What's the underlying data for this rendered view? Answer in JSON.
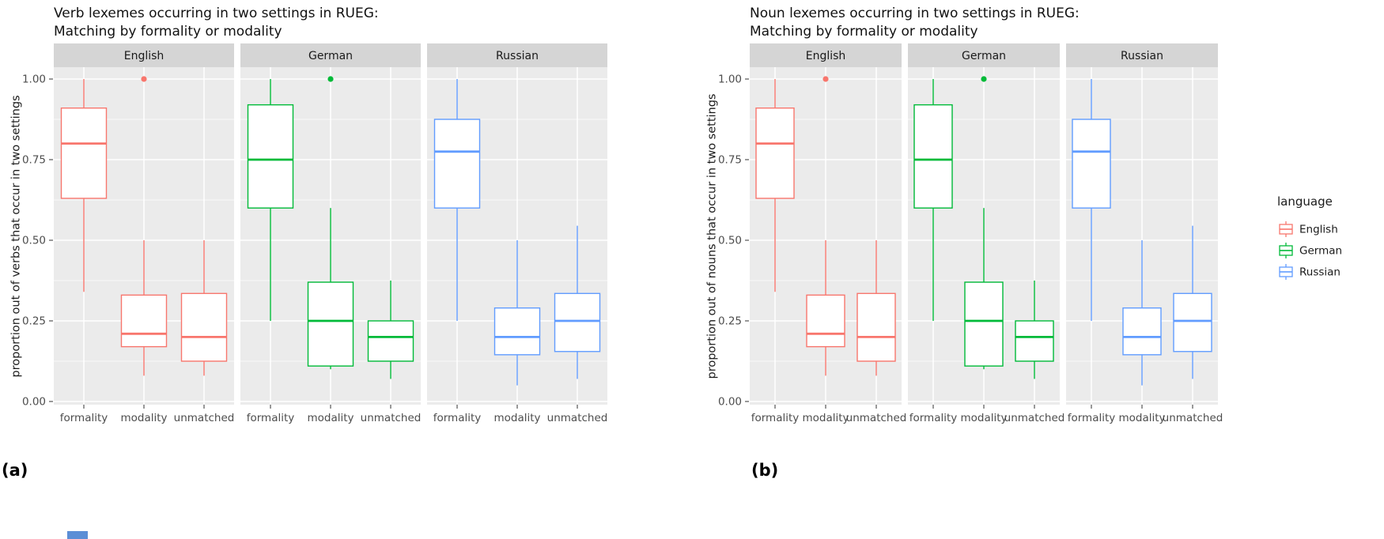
{
  "figures": [
    {
      "caption": "(a)",
      "title_line1": "Verb lexemes occurring in two settings in RUEG:",
      "title_line2": "Matching by formality or modality",
      "ylabel": "proportion out of verbs that occur in two settings"
    },
    {
      "caption": "(b)",
      "title_line1": "Noun lexemes occurring in two settings in RUEG:",
      "title_line2": "Matching by formality or modality",
      "ylabel": "proportion out of nouns that occur in two settings"
    }
  ],
  "colors": {
    "english": "#F8766D",
    "german": "#00BA38",
    "russian": "#619CFF",
    "panel_bg": "#EBEBEB",
    "strip_bg": "#D5D5D5",
    "grid": "#FFFFFF",
    "tick_text": "#4D4D4D"
  },
  "chart_data": [
    {
      "type": "boxplot",
      "title": "Verb lexemes occurring in two settings in RUEG: Matching by formality or modality",
      "ylabel": "proportion out of verbs that occur in two settings",
      "ylim": [
        0.0,
        1.05
      ],
      "yticks": [
        0.0,
        0.25,
        0.5,
        0.75,
        1.0
      ],
      "ytick_labels": [
        "0.00",
        "0.25",
        "0.50",
        "0.75",
        "1.00"
      ],
      "minor_gridlines": [
        0.125,
        0.375,
        0.625,
        0.875
      ],
      "categories": [
        "formality",
        "modality",
        "unmatched"
      ],
      "grid": true,
      "facets": [
        {
          "label": "English",
          "color": "#F8766D",
          "boxes": [
            {
              "category": "formality",
              "whisker_low": 0.34,
              "q1": 0.63,
              "median": 0.8,
              "q3": 0.91,
              "whisker_high": 1.0,
              "outliers": []
            },
            {
              "category": "modality",
              "whisker_low": 0.08,
              "q1": 0.17,
              "median": 0.21,
              "q3": 0.33,
              "whisker_high": 0.5,
              "outliers": [
                1.0
              ]
            },
            {
              "category": "unmatched",
              "whisker_low": 0.08,
              "q1": 0.125,
              "median": 0.2,
              "q3": 0.335,
              "whisker_high": 0.5,
              "outliers": []
            }
          ]
        },
        {
          "label": "German",
          "color": "#00BA38",
          "boxes": [
            {
              "category": "formality",
              "whisker_low": 0.25,
              "q1": 0.6,
              "median": 0.75,
              "q3": 0.92,
              "whisker_high": 1.0,
              "outliers": []
            },
            {
              "category": "modality",
              "whisker_low": 0.1,
              "q1": 0.11,
              "median": 0.25,
              "q3": 0.37,
              "whisker_high": 0.6,
              "outliers": [
                1.0
              ]
            },
            {
              "category": "unmatched",
              "whisker_low": 0.07,
              "q1": 0.125,
              "median": 0.2,
              "q3": 0.25,
              "whisker_high": 0.375,
              "outliers": []
            }
          ]
        },
        {
          "label": "Russian",
          "color": "#619CFF",
          "boxes": [
            {
              "category": "formality",
              "whisker_low": 0.25,
              "q1": 0.6,
              "median": 0.775,
              "q3": 0.875,
              "whisker_high": 1.0,
              "outliers": []
            },
            {
              "category": "modality",
              "whisker_low": 0.05,
              "q1": 0.145,
              "median": 0.2,
              "q3": 0.29,
              "whisker_high": 0.5,
              "outliers": []
            },
            {
              "category": "unmatched",
              "whisker_low": 0.07,
              "q1": 0.155,
              "median": 0.25,
              "q3": 0.335,
              "whisker_high": 0.545,
              "outliers": []
            }
          ]
        }
      ],
      "legend": null
    },
    {
      "type": "boxplot",
      "title": "Noun lexemes occurring in two settings in RUEG: Matching by formality or modality",
      "ylabel": "proportion out of nouns that occur in two settings",
      "ylim": [
        0.0,
        1.05
      ],
      "yticks": [
        0.0,
        0.25,
        0.5,
        0.75,
        1.0
      ],
      "ytick_labels": [
        "0.00",
        "0.25",
        "0.50",
        "0.75",
        "1.00"
      ],
      "minor_gridlines": [
        0.125,
        0.375,
        0.625,
        0.875
      ],
      "categories": [
        "formality",
        "modality",
        "unmatched"
      ],
      "grid": true,
      "facets": [
        {
          "label": "English",
          "color": "#F8766D",
          "boxes": [
            {
              "category": "formality",
              "whisker_low": 0.34,
              "q1": 0.63,
              "median": 0.8,
              "q3": 0.91,
              "whisker_high": 1.0,
              "outliers": []
            },
            {
              "category": "modality",
              "whisker_low": 0.08,
              "q1": 0.17,
              "median": 0.21,
              "q3": 0.33,
              "whisker_high": 0.5,
              "outliers": [
                1.0
              ]
            },
            {
              "category": "unmatched",
              "whisker_low": 0.08,
              "q1": 0.125,
              "median": 0.2,
              "q3": 0.335,
              "whisker_high": 0.5,
              "outliers": []
            }
          ]
        },
        {
          "label": "German",
          "color": "#00BA38",
          "boxes": [
            {
              "category": "formality",
              "whisker_low": 0.25,
              "q1": 0.6,
              "median": 0.75,
              "q3": 0.92,
              "whisker_high": 1.0,
              "outliers": []
            },
            {
              "category": "modality",
              "whisker_low": 0.1,
              "q1": 0.11,
              "median": 0.25,
              "q3": 0.37,
              "whisker_high": 0.6,
              "outliers": [
                1.0
              ]
            },
            {
              "category": "unmatched",
              "whisker_low": 0.07,
              "q1": 0.125,
              "median": 0.2,
              "q3": 0.25,
              "whisker_high": 0.375,
              "outliers": []
            }
          ]
        },
        {
          "label": "Russian",
          "color": "#619CFF",
          "boxes": [
            {
              "category": "formality",
              "whisker_low": 0.25,
              "q1": 0.6,
              "median": 0.775,
              "q3": 0.875,
              "whisker_high": 1.0,
              "outliers": []
            },
            {
              "category": "modality",
              "whisker_low": 0.05,
              "q1": 0.145,
              "median": 0.2,
              "q3": 0.29,
              "whisker_high": 0.5,
              "outliers": []
            },
            {
              "category": "unmatched",
              "whisker_low": 0.07,
              "q1": 0.155,
              "median": 0.25,
              "q3": 0.335,
              "whisker_high": 0.545,
              "outliers": []
            }
          ]
        }
      ],
      "legend": {
        "title": "language",
        "position": "right",
        "entries": [
          {
            "label": "English",
            "color": "#F8766D"
          },
          {
            "label": "German",
            "color": "#00BA38"
          },
          {
            "label": "Russian",
            "color": "#619CFF"
          }
        ]
      }
    }
  ]
}
